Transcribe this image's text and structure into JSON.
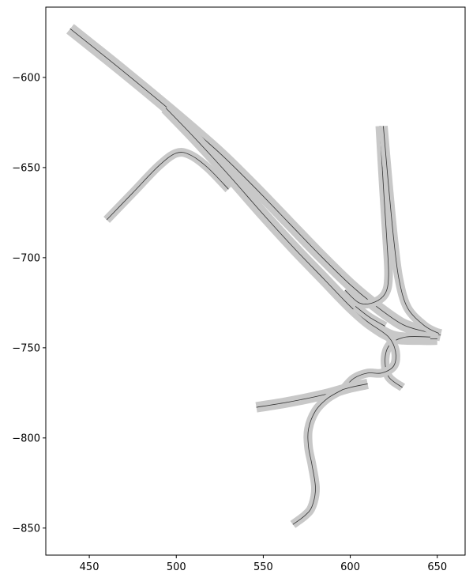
{
  "chart_data": {
    "type": "road-network",
    "xlim": [
      425,
      666
    ],
    "ylim": [
      -865,
      -561
    ],
    "x_ticks": [
      450,
      500,
      550,
      600,
      650
    ],
    "y_ticks": [
      -600,
      -650,
      -700,
      -750,
      -800,
      -850
    ],
    "grid": false,
    "colors": {
      "road": "#c8c8c8",
      "edge": "#555555",
      "center": "#333333",
      "dash": "#e6e6e6"
    },
    "roads": [
      {
        "id": "main-corridor",
        "lanes": 2,
        "width": 7,
        "points": [
          [
            439,
            -573
          ],
          [
            470,
            -597
          ],
          [
            500,
            -621
          ],
          [
            525,
            -642
          ],
          [
            545,
            -661
          ],
          [
            565,
            -681
          ],
          [
            583,
            -699
          ],
          [
            600,
            -715
          ],
          [
            615,
            -727
          ],
          [
            630,
            -737
          ],
          [
            643,
            -741
          ],
          [
            652,
            -743
          ]
        ]
      },
      {
        "id": "parallel-road",
        "lanes": 2,
        "width": 7,
        "points": [
          [
            494,
            -617
          ],
          [
            510,
            -633
          ],
          [
            530,
            -654
          ],
          [
            550,
            -676
          ],
          [
            568,
            -695
          ],
          [
            585,
            -712
          ],
          [
            600,
            -727
          ],
          [
            612,
            -737
          ],
          [
            625,
            -744
          ],
          [
            640,
            -745
          ],
          [
            650,
            -745
          ]
        ]
      },
      {
        "id": "west-loop-ramp",
        "lanes": 1,
        "width": 5,
        "points": [
          [
            460,
            -679
          ],
          [
            475,
            -664
          ],
          [
            490,
            -649
          ],
          [
            500,
            -642
          ],
          [
            508,
            -643
          ],
          [
            518,
            -650
          ],
          [
            530,
            -662
          ]
        ]
      },
      {
        "id": "north-ramp",
        "lanes": 1,
        "width": 5,
        "points": [
          [
            617,
            -627
          ],
          [
            619,
            -660
          ],
          [
            621,
            -690
          ],
          [
            622,
            -710
          ],
          [
            620,
            -720
          ],
          [
            613,
            -725
          ],
          [
            605,
            -725
          ],
          [
            597,
            -718
          ]
        ]
      },
      {
        "id": "north-main-branch",
        "lanes": 1,
        "width": 5,
        "points": [
          [
            619,
            -627
          ],
          [
            622,
            -660
          ],
          [
            625,
            -690
          ],
          [
            628,
            -712
          ],
          [
            633,
            -728
          ],
          [
            643,
            -738
          ],
          [
            651,
            -742
          ]
        ]
      },
      {
        "id": "east-loop",
        "lanes": 1,
        "width": 5,
        "points": [
          [
            630,
            -772
          ],
          [
            622,
            -766
          ],
          [
            620,
            -756
          ],
          [
            623,
            -748
          ],
          [
            632,
            -744
          ],
          [
            646,
            -744
          ]
        ]
      },
      {
        "id": "center-loop",
        "lanes": 1,
        "width": 5,
        "points": [
          [
            612,
            -737
          ],
          [
            622,
            -744
          ],
          [
            626,
            -752
          ],
          [
            625,
            -760
          ],
          [
            618,
            -764
          ],
          [
            610,
            -764
          ],
          [
            602,
            -767
          ],
          [
            596,
            -773
          ]
        ]
      },
      {
        "id": "southwest-road",
        "lanes": 2,
        "width": 6,
        "points": [
          [
            546,
            -783
          ],
          [
            565,
            -780
          ],
          [
            585,
            -776
          ],
          [
            600,
            -772
          ],
          [
            610,
            -770
          ]
        ]
      },
      {
        "id": "south-road",
        "lanes": 1,
        "width": 5,
        "points": [
          [
            596,
            -773
          ],
          [
            587,
            -778
          ],
          [
            580,
            -785
          ],
          [
            576,
            -795
          ],
          [
            576,
            -805
          ],
          [
            578,
            -815
          ],
          [
            580,
            -828
          ],
          [
            578,
            -838
          ],
          [
            574,
            -843
          ],
          [
            567,
            -848
          ]
        ]
      },
      {
        "id": "crossover-link",
        "lanes": 1,
        "width": 5,
        "points": [
          [
            603,
            -727
          ],
          [
            611,
            -733
          ],
          [
            620,
            -738
          ]
        ]
      }
    ]
  }
}
